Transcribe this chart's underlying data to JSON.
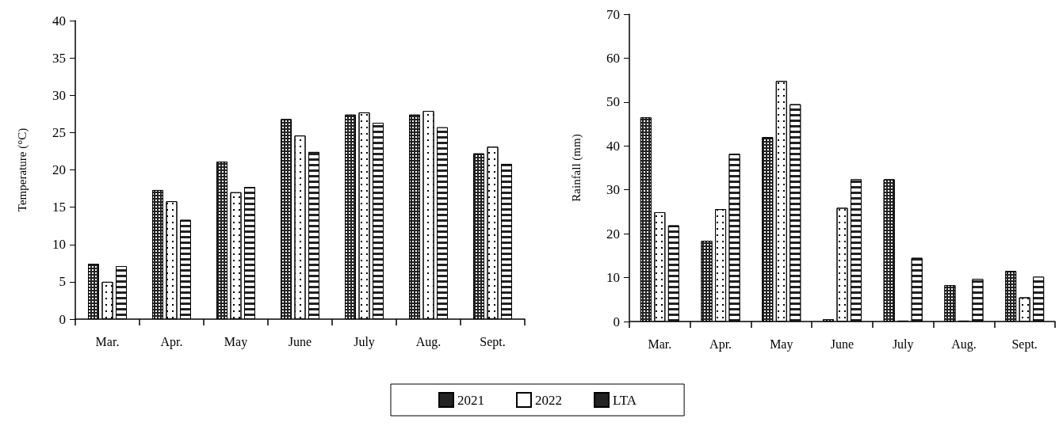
{
  "chart_data": [
    {
      "type": "bar",
      "ylabel": "Temperature (°C)",
      "categories": [
        "Mar.",
        "Apr.",
        "May",
        "June",
        "July",
        "Aug.",
        "Sept."
      ],
      "series": [
        {
          "color": "#222222",
          "values": [
            7.4,
            17.3,
            21.1,
            26.8,
            27.4,
            27.4,
            22.2
          ]
        },
        {
          "color": "#ffffff",
          "values": [
            5.0,
            15.8,
            17.0,
            24.6,
            27.7,
            27.9,
            23.1
          ]
        },
        {
          "color": "#222222",
          "values": [
            7.1,
            13.3,
            17.7,
            22.4,
            26.3,
            25.7,
            20.8
          ]
        }
      ],
      "ylim": [
        0,
        40
      ],
      "yticks": [
        0,
        5,
        10,
        15,
        20,
        25,
        30,
        35,
        40
      ],
      "grid": false,
      "legend": false
    },
    {
      "type": "bar",
      "ylabel": "Rainfall (mm)",
      "categories": [
        "Mar.",
        "Apr.",
        "May",
        "June",
        "July",
        "Aug.",
        "Sept."
      ],
      "series": [
        {
          "name": "2021",
          "color": "#222222",
          "values": [
            46.5,
            18.4,
            42.0,
            0.5,
            32.4,
            8.3,
            11.5
          ]
        },
        {
          "name": "2022",
          "color": "#ffffff",
          "values": [
            24.9,
            25.6,
            54.8,
            25.9,
            0.2,
            0.2,
            5.5
          ]
        },
        {
          "name": "LTA",
          "color": "#222222",
          "values": [
            21.9,
            38.2,
            49.5,
            32.4,
            14.5,
            9.7,
            10.2
          ]
        }
      ],
      "ylim": [
        0,
        70
      ],
      "yticks": [
        0,
        10,
        20,
        30,
        40,
        50,
        60,
        70
      ],
      "grid": false,
      "legend": "bottom"
    }
  ]
}
